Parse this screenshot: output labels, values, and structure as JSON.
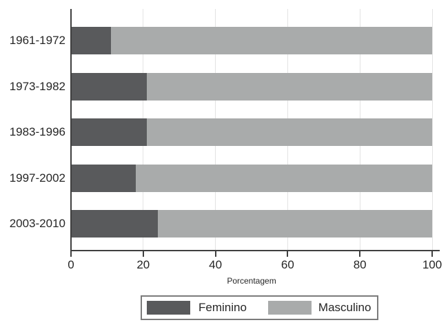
{
  "chart_data": {
    "type": "bar",
    "orientation": "horizontal",
    "stacked": true,
    "title": "",
    "xlabel": "Porcentagem",
    "ylabel": "",
    "xlim": [
      0,
      100
    ],
    "xticks": [
      0,
      20,
      40,
      60,
      80,
      100
    ],
    "grid": true,
    "legend_position": "bottom",
    "categories": [
      "1961-1972",
      "1973-1982",
      "1983-1996",
      "1997-2002",
      "2003-2010"
    ],
    "series": [
      {
        "name": "Feminino",
        "color": "#595a5c",
        "values": [
          11,
          21,
          21,
          18,
          24
        ]
      },
      {
        "name": "Masculino",
        "color": "#a9abab",
        "values": [
          89,
          79,
          79,
          82,
          76
        ]
      }
    ]
  }
}
